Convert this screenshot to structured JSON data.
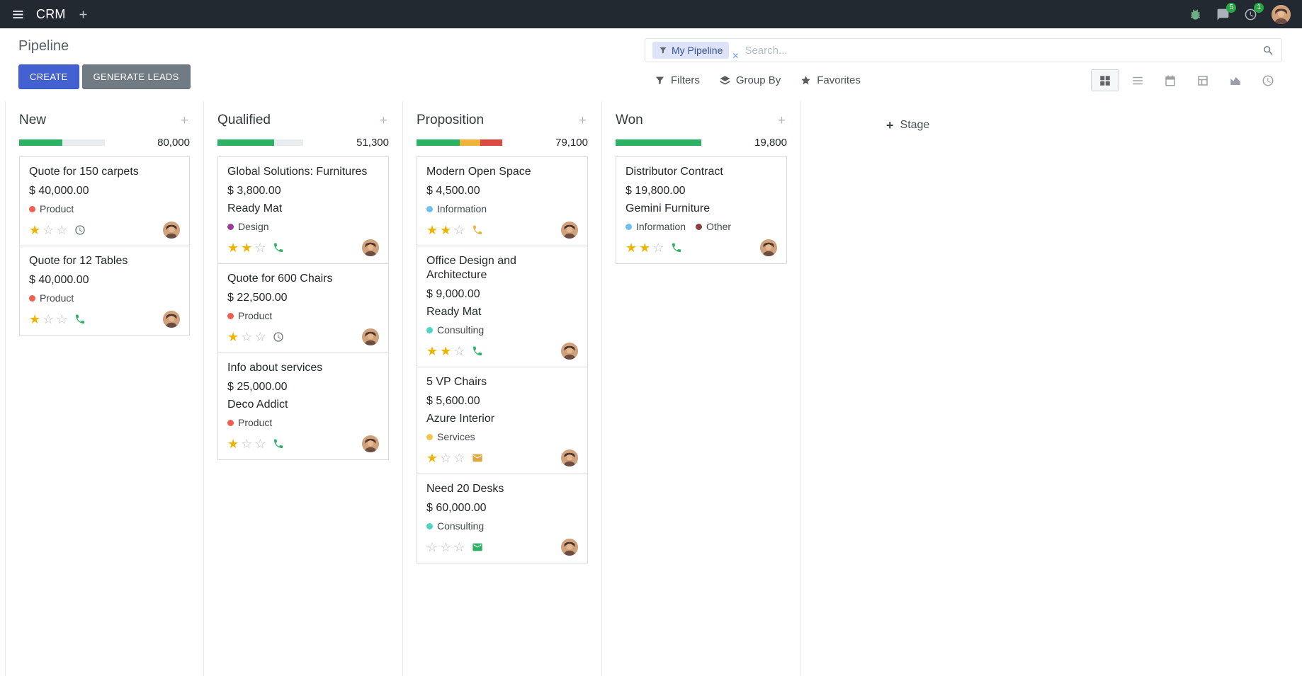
{
  "app": {
    "name": "CRM"
  },
  "topbar": {
    "messages_badge": "5",
    "activities_badge": "1"
  },
  "page": {
    "title": "Pipeline"
  },
  "actions": {
    "create": "CREATE",
    "generate_leads": "GENERATE LEADS"
  },
  "search": {
    "facet": "My Pipeline",
    "placeholder": "Search..."
  },
  "toolbar": {
    "filters": "Filters",
    "group_by": "Group By",
    "favorites": "Favorites"
  },
  "kanban": {
    "add_stage_label": "Stage",
    "columns": [
      {
        "title": "New",
        "total": "80,000",
        "progress": [
          {
            "color": "#2bb263",
            "pct": 50
          }
        ],
        "cards": [
          {
            "title": "Quote for 150 carpets",
            "amount": "$ 40,000.00",
            "tags": [
              {
                "label": "Product",
                "color": "#ef5e4e"
              }
            ],
            "stars": 1,
            "activity": {
              "type": "clock",
              "color": "#6c757d"
            }
          },
          {
            "title": "Quote for 12 Tables",
            "amount": "$ 40,000.00",
            "tags": [
              {
                "label": "Product",
                "color": "#ef5e4e"
              }
            ],
            "stars": 1,
            "activity": {
              "type": "phone",
              "color": "#2bb263"
            }
          }
        ]
      },
      {
        "title": "Qualified",
        "total": "51,300",
        "progress": [
          {
            "color": "#2bb263",
            "pct": 66
          }
        ],
        "cards": [
          {
            "title": "Global Solutions: Furnitures",
            "amount": "$ 3,800.00",
            "partner": "Ready Mat",
            "tags": [
              {
                "label": "Design",
                "color": "#9a3d9a"
              }
            ],
            "stars": 2,
            "activity": {
              "type": "phone",
              "color": "#2bb263"
            }
          },
          {
            "title": "Quote for 600 Chairs",
            "amount": "$ 22,500.00",
            "tags": [
              {
                "label": "Product",
                "color": "#ef5e4e"
              }
            ],
            "stars": 1,
            "activity": {
              "type": "clock",
              "color": "#6c757d"
            }
          },
          {
            "title": "Info about services",
            "amount": "$ 25,000.00",
            "partner": "Deco Addict",
            "tags": [
              {
                "label": "Product",
                "color": "#ef5e4e"
              }
            ],
            "stars": 1,
            "activity": {
              "type": "phone",
              "color": "#2bb263"
            }
          }
        ]
      },
      {
        "title": "Proposition",
        "total": "79,100",
        "progress": [
          {
            "color": "#2bb263",
            "pct": 50
          },
          {
            "color": "#efb339",
            "pct": 24
          },
          {
            "color": "#db4a41",
            "pct": 26
          }
        ],
        "cards": [
          {
            "title": "Modern Open Space",
            "amount": "$ 4,500.00",
            "tags": [
              {
                "label": "Information",
                "color": "#6cc1ed"
              }
            ],
            "stars": 2,
            "activity": {
              "type": "phone",
              "color": "#e8b240"
            }
          },
          {
            "title": "Office Design and Architecture",
            "amount": "$ 9,000.00",
            "partner": "Ready Mat",
            "tags": [
              {
                "label": "Consulting",
                "color": "#4dd6c4"
              }
            ],
            "stars": 2,
            "activity": {
              "type": "phone",
              "color": "#2bb263"
            }
          },
          {
            "title": "5 VP Chairs",
            "amount": "$ 5,600.00",
            "partner": "Azure Interior",
            "tags": [
              {
                "label": "Services",
                "color": "#efc54d"
              }
            ],
            "stars": 1,
            "activity": {
              "type": "envelope",
              "color": "#dfa73f"
            }
          },
          {
            "title": "Need 20 Desks",
            "amount": "$ 60,000.00",
            "tags": [
              {
                "label": "Consulting",
                "color": "#4dd6c4"
              }
            ],
            "stars": 0,
            "activity": {
              "type": "envelope",
              "color": "#2bb263"
            }
          }
        ]
      },
      {
        "title": "Won",
        "total": "19,800",
        "progress": [
          {
            "color": "#2bb263",
            "pct": 100
          }
        ],
        "cards": [
          {
            "title": "Distributor Contract",
            "amount": "$ 19,800.00",
            "partner": "Gemini Furniture",
            "tags": [
              {
                "label": "Information",
                "color": "#6cc1ed"
              },
              {
                "label": "Other",
                "color": "#8b4045"
              }
            ],
            "stars": 2,
            "activity": {
              "type": "phone",
              "color": "#2bb263"
            }
          }
        ]
      }
    ]
  }
}
